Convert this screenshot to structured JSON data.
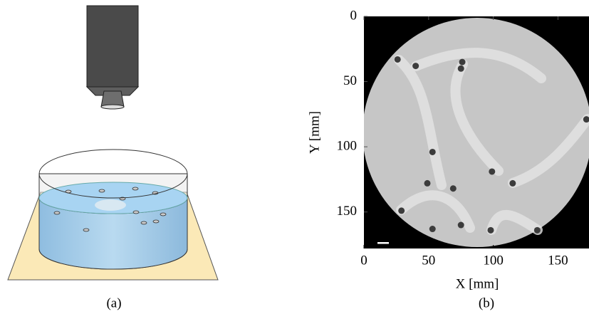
{
  "figure_labels": [
    "(a)",
    "(b)"
  ],
  "chart_data": {
    "type": "scatter",
    "x_label": "X [mm]",
    "y_label": "Y [mm]",
    "xlim": [
      0,
      174
    ],
    "ylim": [
      0,
      178
    ],
    "y_inverted": true,
    "xticks": [
      0,
      50,
      100,
      150
    ],
    "yticks": [
      0,
      50,
      100,
      150
    ],
    "series": [
      {
        "color": "#3c3c3c",
        "x": [
          26,
          40,
          76,
          75,
          172,
          53,
          99,
          49,
          69,
          115,
          29,
          53,
          75,
          98,
          134
        ],
        "values": [
          33,
          38,
          35,
          40,
          79,
          104,
          119,
          128,
          132,
          128,
          149,
          163,
          160,
          164,
          164
        ]
      }
    ]
  }
}
